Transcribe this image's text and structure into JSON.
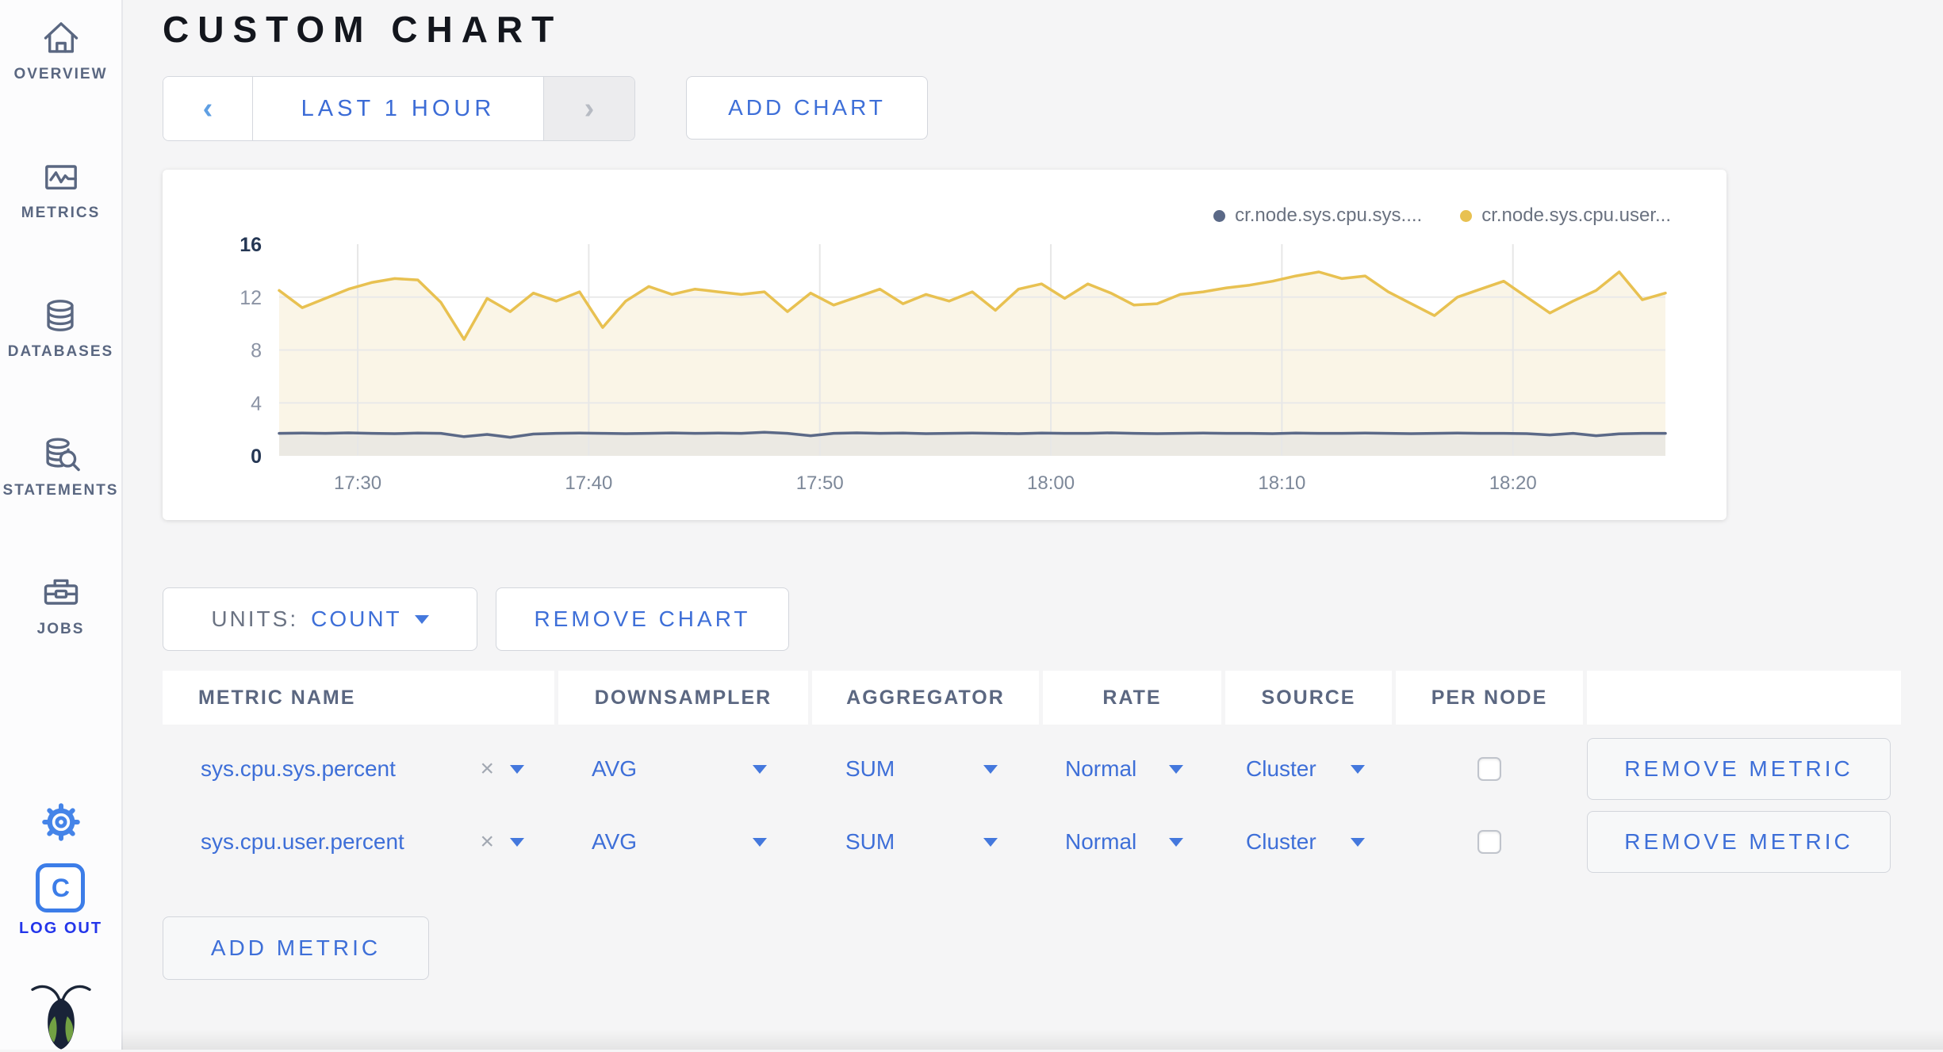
{
  "header": {
    "title": "CUSTOM CHART"
  },
  "sidebar": {
    "items": [
      {
        "label": "OVERVIEW",
        "icon": "home-icon"
      },
      {
        "label": "METRICS",
        "icon": "line-chart-icon"
      },
      {
        "label": "DATABASES",
        "icon": "database-icon"
      },
      {
        "label": "STATEMENTS",
        "icon": "database-search-icon"
      },
      {
        "label": "JOBS",
        "icon": "briefcase-icon"
      }
    ],
    "settings_icon": "gear-icon",
    "logout_label": "LOG OUT",
    "logo_letter": "C"
  },
  "controls": {
    "time_range": {
      "prev_icon": "‹",
      "label": "LAST 1 HOUR",
      "next_icon": "›",
      "next_disabled": true
    },
    "add_chart_label": "ADD CHART"
  },
  "chart_data": {
    "type": "line",
    "title": "",
    "x_range_minutes": [
      0,
      60
    ],
    "x_ticks": [
      {
        "label": "17:30",
        "minute": 3.4
      },
      {
        "label": "17:40",
        "minute": 13.4
      },
      {
        "label": "17:50",
        "minute": 23.4
      },
      {
        "label": "18:00",
        "minute": 33.4
      },
      {
        "label": "18:10",
        "minute": 43.4
      },
      {
        "label": "18:20",
        "minute": 53.4
      }
    ],
    "y_ticks": [
      0,
      4,
      8,
      12,
      16
    ],
    "ylim": [
      0,
      16
    ],
    "grid": true,
    "legend_position": "top-right",
    "series": [
      {
        "name": "cr.node.sys.cpu.sys....",
        "color": "#5b6987",
        "fill": "#ebe9e3",
        "values": [
          1.7,
          1.72,
          1.7,
          1.74,
          1.7,
          1.68,
          1.72,
          1.7,
          1.45,
          1.62,
          1.4,
          1.65,
          1.7,
          1.72,
          1.7,
          1.68,
          1.7,
          1.73,
          1.7,
          1.72,
          1.7,
          1.78,
          1.7,
          1.52,
          1.7,
          1.74,
          1.7,
          1.72,
          1.68,
          1.7,
          1.72,
          1.7,
          1.68,
          1.72,
          1.7,
          1.7,
          1.74,
          1.7,
          1.68,
          1.7,
          1.72,
          1.7,
          1.7,
          1.68,
          1.72,
          1.7,
          1.7,
          1.72,
          1.7,
          1.68,
          1.7,
          1.72,
          1.7,
          1.7,
          1.68,
          1.58,
          1.7,
          1.52,
          1.66,
          1.7,
          1.7
        ]
      },
      {
        "name": "cr.node.sys.cpu.user...",
        "color": "#e8c151",
        "fill": "#faf5e7",
        "values": [
          12.5,
          11.2,
          11.9,
          12.6,
          13.1,
          13.4,
          13.3,
          11.6,
          8.8,
          11.9,
          10.9,
          12.3,
          11.7,
          12.4,
          9.7,
          11.7,
          12.8,
          12.2,
          12.6,
          12.4,
          12.2,
          12.4,
          10.9,
          12.3,
          11.4,
          12.0,
          12.6,
          11.5,
          12.2,
          11.7,
          12.4,
          11.0,
          12.6,
          13.0,
          11.9,
          13.0,
          12.3,
          11.4,
          11.5,
          12.2,
          12.4,
          12.7,
          12.9,
          13.2,
          13.6,
          13.9,
          13.4,
          13.6,
          12.4,
          11.5,
          10.6,
          12.0,
          12.6,
          13.2,
          12.0,
          10.8,
          11.7,
          12.5,
          13.9,
          11.8,
          12.3
        ]
      }
    ]
  },
  "chart_controls": {
    "units_label": "UNITS:",
    "units_value": "COUNT",
    "remove_chart_label": "REMOVE CHART",
    "add_metric_label": "ADD METRIC"
  },
  "table": {
    "headers": [
      "METRIC NAME",
      "DOWNSAMPLER",
      "AGGREGATOR",
      "RATE",
      "SOURCE",
      "PER NODE",
      ""
    ],
    "rows": [
      {
        "metric_name": "sys.cpu.sys.percent",
        "clear_icon": "×",
        "downsampler": "AVG",
        "aggregator": "SUM",
        "rate": "Normal",
        "source": "Cluster",
        "per_node_checked": false,
        "remove_label": "REMOVE METRIC"
      },
      {
        "metric_name": "sys.cpu.user.percent",
        "clear_icon": "×",
        "downsampler": "AVG",
        "aggregator": "SUM",
        "rate": "Normal",
        "source": "Cluster",
        "per_node_checked": false,
        "remove_label": "REMOVE METRIC"
      }
    ]
  },
  "colors": {
    "accent_blue": "#3e6fd8",
    "slate": "#5a6781",
    "logout_blue": "#2335ea",
    "background": "#f5f5f6",
    "panel": "#ffffff",
    "series_sys": "#5b6987",
    "series_user": "#e8c151"
  }
}
